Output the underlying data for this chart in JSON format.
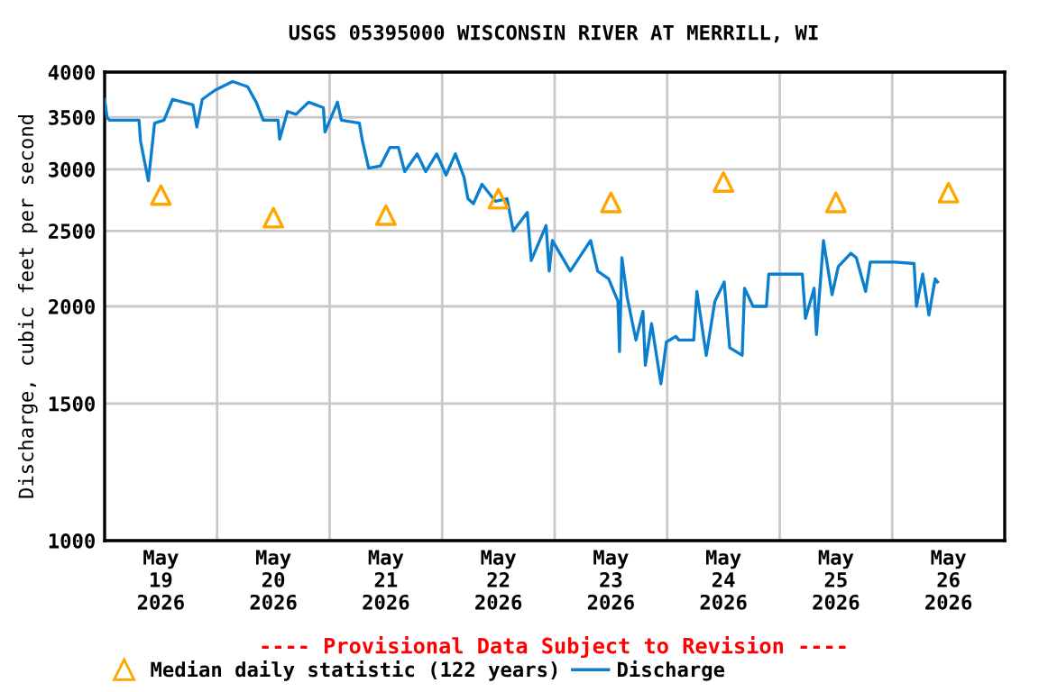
{
  "chart_data": {
    "type": "line",
    "title": "USGS 05395000 WISCONSIN RIVER AT MERRILL, WI",
    "ylabel": "Discharge, cubic feet per second",
    "annotations": [
      "---- Provisional Data Subject to Revision ----"
    ],
    "series": [
      {
        "name": "Median daily statistic (122 years)",
        "type": "scatter",
        "marker": "triangle",
        "color": "#ffa500",
        "x": [
          "2026-05-19T12:00",
          "2026-05-20T12:00",
          "2026-05-21T12:00",
          "2026-05-22T12:00",
          "2026-05-23T12:00",
          "2026-05-24T12:00",
          "2026-05-25T12:00",
          "2026-05-26T12:00"
        ],
        "values": [
          2780,
          2600,
          2620,
          2750,
          2720,
          2890,
          2720,
          2800
        ]
      },
      {
        "name": "Discharge",
        "color": "#0a7fcf",
        "x": [
          "2026-05-19T00:00",
          "2026-05-19T00:30",
          "2026-05-19T01:00",
          "2026-05-19T07:20",
          "2026-05-19T07:40",
          "2026-05-19T09:20",
          "2026-05-19T10:40",
          "2026-05-19T12:40",
          "2026-05-19T14:30",
          "2026-05-19T18:50",
          "2026-05-19T19:40",
          "2026-05-19T20:50",
          "2026-05-19T23:30",
          "2026-05-20T03:20",
          "2026-05-20T06:30",
          "2026-05-20T08:20",
          "2026-05-20T09:50",
          "2026-05-20T13:00",
          "2026-05-20T13:20",
          "2026-05-20T15:00",
          "2026-05-20T16:50",
          "2026-05-20T19:30",
          "2026-05-20T22:40",
          "2026-05-20T23:00",
          "2026-05-21T01:40",
          "2026-05-21T02:30",
          "2026-05-21T06:20",
          "2026-05-21T07:00",
          "2026-05-21T08:20",
          "2026-05-21T10:50",
          "2026-05-21T12:50",
          "2026-05-21T14:40",
          "2026-05-21T16:00",
          "2026-05-21T18:40",
          "2026-05-21T20:30",
          "2026-05-21T22:50",
          "2026-05-22T00:50",
          "2026-05-22T02:50",
          "2026-05-22T04:40",
          "2026-05-22T05:30",
          "2026-05-22T06:40",
          "2026-05-22T08:30",
          "2026-05-22T11:20",
          "2026-05-22T13:50",
          "2026-05-22T15:10",
          "2026-05-22T18:10",
          "2026-05-22T19:00",
          "2026-05-22T22:10",
          "2026-05-22T22:50",
          "2026-05-22T23:30",
          "2026-05-23T03:20",
          "2026-05-23T07:40",
          "2026-05-23T09:10",
          "2026-05-23T11:30",
          "2026-05-23T13:30",
          "2026-05-23T13:50",
          "2026-05-23T14:20",
          "2026-05-23T15:30",
          "2026-05-23T17:20",
          "2026-05-23T18:50",
          "2026-05-23T19:20",
          "2026-05-23T20:40",
          "2026-05-23T22:40",
          "2026-05-23T23:50",
          "2026-05-24T01:50",
          "2026-05-24T02:30",
          "2026-05-24T05:40",
          "2026-05-24T06:20",
          "2026-05-24T08:20",
          "2026-05-24T10:10",
          "2026-05-24T12:10",
          "2026-05-24T13:20",
          "2026-05-24T16:00",
          "2026-05-24T16:30",
          "2026-05-24T18:20",
          "2026-05-24T21:10",
          "2026-05-24T21:40",
          "2026-05-25T04:50",
          "2026-05-25T05:30",
          "2026-05-25T07:20",
          "2026-05-25T07:50",
          "2026-05-25T09:20",
          "2026-05-25T11:10",
          "2026-05-25T12:30",
          "2026-05-25T15:10",
          "2026-05-25T16:20",
          "2026-05-25T18:20",
          "2026-05-25T19:20",
          "2026-05-26T00:40",
          "2026-05-26T04:40",
          "2026-05-26T05:10",
          "2026-05-26T06:30",
          "2026-05-26T07:50",
          "2026-05-26T09:10",
          "2026-05-26T09:40"
        ],
        "values": [
          3690,
          3500,
          3470,
          3470,
          3260,
          2900,
          3440,
          3470,
          3690,
          3630,
          3400,
          3690,
          3790,
          3890,
          3830,
          3660,
          3470,
          3470,
          3280,
          3560,
          3530,
          3660,
          3600,
          3350,
          3660,
          3470,
          3440,
          3260,
          3010,
          3030,
          3200,
          3200,
          2980,
          3140,
          2980,
          3140,
          2950,
          3140,
          2930,
          2750,
          2710,
          2870,
          2730,
          2750,
          2500,
          2640,
          2290,
          2540,
          2220,
          2430,
          2220,
          2430,
          2220,
          2170,
          2030,
          1750,
          2310,
          2050,
          1810,
          1970,
          1680,
          1900,
          1590,
          1800,
          1830,
          1810,
          1810,
          2090,
          1730,
          2030,
          2150,
          1770,
          1730,
          2110,
          2000,
          2000,
          2200,
          2200,
          1930,
          2110,
          1840,
          2430,
          2070,
          2250,
          2340,
          2310,
          2090,
          2280,
          2280,
          2270,
          2000,
          2200,
          1950,
          2170,
          2150
        ]
      }
    ],
    "xlim": [
      "2026-05-19T00:00",
      "2026-05-27T00:00"
    ],
    "xticks": [
      {
        "value": "2026-05-19T00:00",
        "label": null
      },
      {
        "value": "2026-05-19T12:00",
        "label": "May\n19\n2026"
      },
      {
        "value": "2026-05-20T00:00",
        "label": null
      },
      {
        "value": "2026-05-20T12:00",
        "label": "May\n20\n2026"
      },
      {
        "value": "2026-05-21T00:00",
        "label": null
      },
      {
        "value": "2026-05-21T12:00",
        "label": "May\n21\n2026"
      },
      {
        "value": "2026-05-22T00:00",
        "label": null
      },
      {
        "value": "2026-05-22T12:00",
        "label": "May\n22\n2026"
      },
      {
        "value": "2026-05-23T00:00",
        "label": null
      },
      {
        "value": "2026-05-23T12:00",
        "label": "May\n23\n2026"
      },
      {
        "value": "2026-05-24T00:00",
        "label": null
      },
      {
        "value": "2026-05-24T12:00",
        "label": "May\n24\n2026"
      },
      {
        "value": "2026-05-25T00:00",
        "label": null
      },
      {
        "value": "2026-05-25T12:00",
        "label": "May\n25\n2026"
      },
      {
        "value": "2026-05-26T00:00",
        "label": null
      },
      {
        "value": "2026-05-26T12:00",
        "label": "May\n26\n2026"
      },
      {
        "value": "2026-05-27T00:00",
        "label": null
      }
    ],
    "log": "y",
    "ylim": [
      1000,
      4000
    ],
    "yticks": [
      1000,
      1500,
      2000,
      2500,
      3000,
      3500,
      4000
    ],
    "grid": true,
    "legend": "bottom",
    "line_style": "solid"
  }
}
